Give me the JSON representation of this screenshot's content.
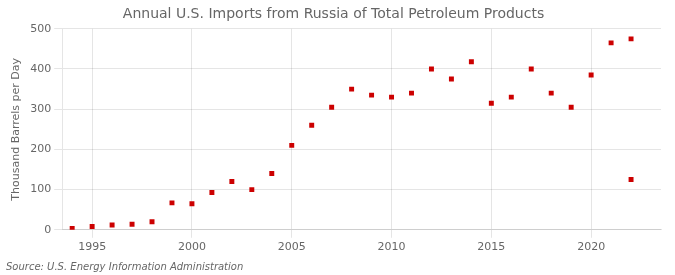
{
  "chart_data": {
    "type": "scatter",
    "title": "Annual U.S. Imports from Russia of Total Petroleum Products",
    "ylabel": "Thousand Barrels per Day",
    "annotations": [
      "Source: U.S. Energy Information Administration"
    ],
    "x": [
      1994,
      1995,
      1996,
      1997,
      1998,
      1999,
      2000,
      2001,
      2002,
      2003,
      2004,
      2005,
      2006,
      2007,
      2008,
      2009,
      2010,
      2011,
      2012,
      2013,
      2014,
      2015,
      2016,
      2017,
      2018,
      2019,
      2020,
      2021,
      2022,
      2022
    ],
    "values": [
      3,
      8,
      12,
      14,
      20,
      67,
      65,
      93,
      120,
      100,
      140,
      210,
      260,
      305,
      350,
      335,
      330,
      340,
      400,
      375,
      418,
      315,
      330,
      400,
      340,
      305,
      385,
      465,
      475,
      125
    ],
    "color": "#cc0000",
    "marker": "square",
    "xlim": [
      1993.5,
      2023.5
    ],
    "xticks": [
      1995,
      2000,
      2005,
      2010,
      2015,
      2020
    ],
    "ylim": [
      0,
      500
    ],
    "yticks": [
      0,
      100,
      200,
      300,
      400,
      500
    ],
    "grid": true
  }
}
